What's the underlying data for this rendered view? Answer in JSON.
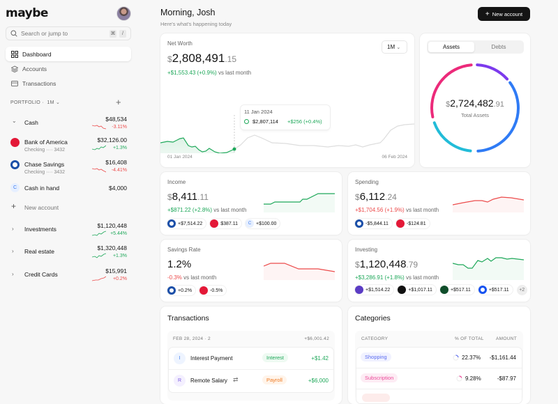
{
  "app": {
    "logo": "maybe"
  },
  "sidebar": {
    "search": {
      "placeholder": "Search or jump to",
      "shortcut": [
        "⌘",
        "/"
      ]
    },
    "nav": [
      {
        "label": "Dashboard",
        "icon": "grid-icon",
        "active": true
      },
      {
        "label": "Accounts",
        "icon": "layers-icon"
      },
      {
        "label": "Transactions",
        "icon": "credit-card-icon"
      }
    ],
    "portfolio": {
      "label": "PORTFOLIO",
      "sep": "·",
      "period": "1M"
    },
    "cash": {
      "label": "Cash",
      "amount": "$48,534",
      "change": "-3.11%"
    },
    "accounts": [
      {
        "name": "Bank of America",
        "sub": "Checking ···· 3432",
        "amount": "$32,126.00",
        "change": "+1.3%",
        "color": "#e31837"
      },
      {
        "name": "Chase Savings",
        "sub": "Checking ···· 3432",
        "amount": "$16,408",
        "change": "-4.41%",
        "color": "#1b4fa8"
      },
      {
        "name": "Cash in hand",
        "amount": "$4,000",
        "letter": "C"
      }
    ],
    "new_account": "New account",
    "groups": [
      {
        "label": "Investments",
        "amount": "$1,120,448",
        "change": "+5.44%"
      },
      {
        "label": "Real estate",
        "amount": "$1,320,448",
        "change": "+1.3%"
      },
      {
        "label": "Credit Cards",
        "amount": "$15,991",
        "change": "+0.2%"
      }
    ]
  },
  "header": {
    "greeting": "Morning, Josh",
    "subtitle": "Here's what's happening today",
    "new_account_button": "New account"
  },
  "net_worth": {
    "label": "Net Worth",
    "currency": "$",
    "whole": "2,808,491",
    "decimal": ".15",
    "change": "+$1,553.43 (+0.9%)",
    "vs": "vs last month",
    "period": "1M",
    "x_start": "01 Jan 2024",
    "x_end": "06 Feb 2024",
    "tooltip": {
      "date": "11 Jan 2024",
      "value": "$2,807,114",
      "change": "+$256 (+0.4%)"
    }
  },
  "assets": {
    "tabs": [
      "Assets",
      "Debts"
    ],
    "currency": "$",
    "whole": "2,724,482",
    "decimal": ".91",
    "label": "Total Assets",
    "colors": [
      "#7c3aed",
      "#2f7bf5",
      "#22bcd8",
      "#ec2a7a"
    ]
  },
  "income": {
    "label": "Income",
    "currency": "$",
    "whole": "8,411",
    "decimal": ".11",
    "change": "+$871.22 (+2.8%)",
    "vs": "vs last month",
    "chips": [
      [
        "+$7,514.22",
        "#1b4fa8"
      ],
      [
        "$387.11",
        "#e31837"
      ],
      [
        "+$100.00",
        "C"
      ]
    ]
  },
  "spending": {
    "label": "Spending",
    "currency": "$",
    "whole": "6,112",
    "decimal": ".24",
    "change": "+$1,704.56 (+1.9%)",
    "vs": "vs last month",
    "chips": [
      [
        "-$5,844.11",
        "#1b4fa8"
      ],
      [
        "-$124.81",
        "#e31837"
      ]
    ]
  },
  "savings": {
    "label": "Savings Rate",
    "value": "1.2%",
    "change": "-0.3%",
    "vs": "vs last month",
    "chips": [
      [
        "+0.2%",
        "#1b4fa8"
      ],
      [
        "-0.5%",
        "#e31837"
      ]
    ]
  },
  "investing": {
    "label": "Investing",
    "currency": "$",
    "whole": "1,120,448",
    "decimal": ".79",
    "change": "+$3,286.91 (+1.8%)",
    "vs": "vs last month",
    "chips": [
      [
        "+$1,514.22",
        "#5b3cc4"
      ],
      [
        "+$1,017.11",
        "#111111"
      ],
      [
        "+$517.11",
        "#0f4d2a"
      ],
      [
        "+$517.11",
        "#1652f0"
      ]
    ],
    "more": "+2"
  },
  "transactions": {
    "title": "Transactions",
    "date": "FEB 28, 2024",
    "count": "2",
    "total": "+$6,001.42",
    "rows": [
      {
        "letter": "I",
        "name": "Interest Payment",
        "category": "Interest",
        "amount": "+$1.42"
      },
      {
        "letter": "R",
        "name": "Remote Salary",
        "category": "Payroll",
        "amount": "+$6,000"
      }
    ]
  },
  "categories": {
    "title": "Categories",
    "headers": [
      "CATEGORY",
      "% OF TOTAL",
      "AMOUNT"
    ],
    "rows": [
      {
        "name": "Shopping",
        "percent": "22.37%",
        "amount": "-$1,161.44",
        "color": "#5b6cf0",
        "pct": 22.37
      },
      {
        "name": "Subscription",
        "percent": "9.28%",
        "amount": "-$87.97",
        "color": "#ec4899",
        "pct": 9.28
      }
    ]
  }
}
